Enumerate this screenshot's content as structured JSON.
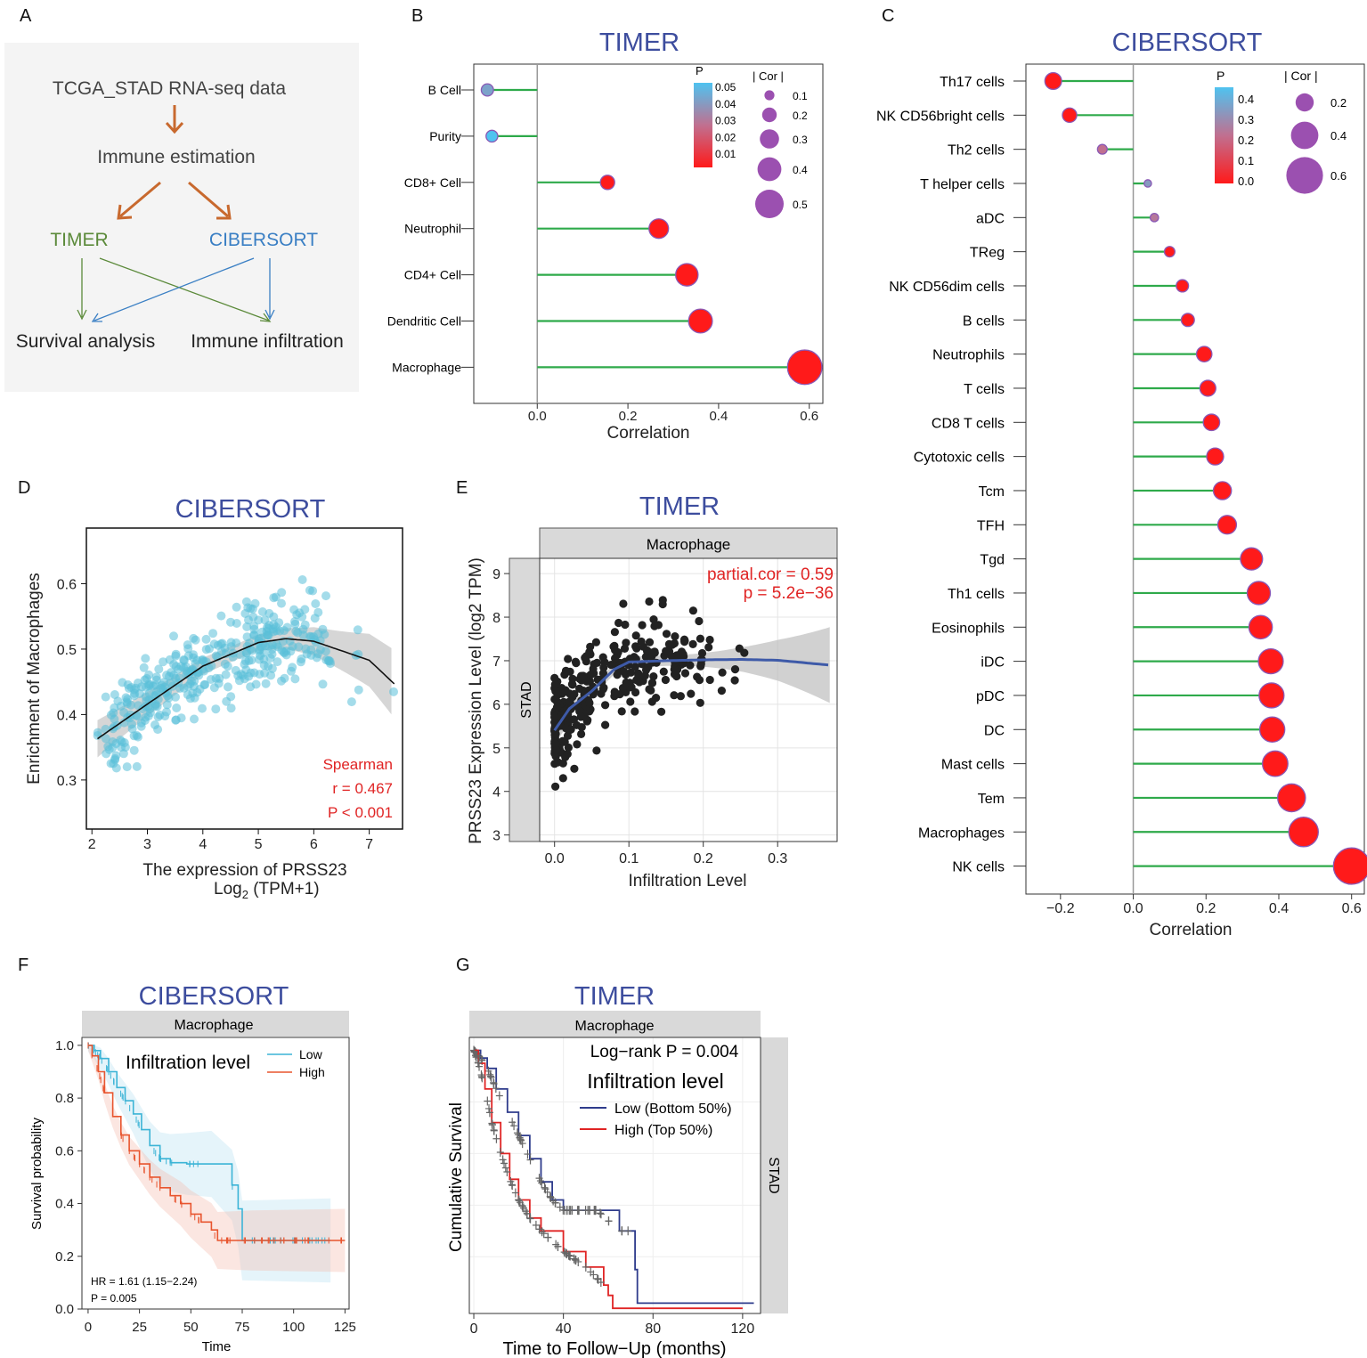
{
  "panels": {
    "A": {
      "label": "A",
      "top": "TCGA_STAD RNA-seq data",
      "mid": "Immune estimation",
      "left": "TIMER",
      "right": "CIBERSORT",
      "out_left": "Survival analysis",
      "out_right": "Immune infiltration",
      "colors": {
        "bg": "#f4f4f4",
        "arrow": "#c8692e",
        "timer": "#5b8a3a",
        "cibersort": "#3a7fc4"
      }
    },
    "B": {
      "label": "B"
    },
    "C": {
      "label": "C"
    },
    "D": {
      "label": "D"
    },
    "E": {
      "label": "E"
    },
    "F": {
      "label": "F"
    },
    "G": {
      "label": "G"
    }
  },
  "chart_data": [
    {
      "id": "B",
      "type": "lollipop",
      "title": "TIMER",
      "xlabel": "Correlation",
      "xlim": [
        -0.14,
        0.63
      ],
      "xticks": [
        "0.0",
        "0.2",
        "0.4",
        "0.6"
      ],
      "xtick_values": [
        0.0,
        0.2,
        0.4,
        0.6
      ],
      "categories": [
        "B Cell",
        "Purity",
        "CD8+ Cell",
        "Neutrophil",
        "CD4+ Cell",
        "Dendritic Cell",
        "Macrophage"
      ],
      "values": [
        -0.11,
        -0.1,
        0.155,
        0.268,
        0.33,
        0.36,
        0.59
      ],
      "p_values": [
        0.04,
        0.05,
        0.0,
        0.0,
        0.0,
        0.0,
        0.0
      ],
      "legend_p_title": "P",
      "legend_p_ticks": [
        "0.05",
        "0.04",
        "0.03",
        "0.02",
        "0.01"
      ],
      "legend_cor_title": "| Cor |",
      "legend_cor_values": [
        "0.1",
        "0.2",
        "0.3",
        "0.4",
        "0.5"
      ]
    },
    {
      "id": "C",
      "type": "lollipop",
      "title": "CIBERSORT",
      "xlabel": "Correlation",
      "xlim": [
        -0.295,
        0.635
      ],
      "xticks": [
        "−0.2",
        "0.0",
        "0.2",
        "0.4",
        "0.6"
      ],
      "xtick_values": [
        -0.2,
        0.0,
        0.2,
        0.4,
        0.6
      ],
      "categories": [
        "Th17 cells",
        "NK CD56bright cells",
        "Th2 cells",
        "T helper cells",
        "aDC",
        "TReg",
        "NK CD56dim cells",
        "B cells",
        "Neutrophils",
        "T cells",
        "CD8 T cells",
        "Cytotoxic cells",
        "Tcm",
        "TFH",
        "Tgd",
        "Th1 cells",
        "Eosinophils",
        "iDC",
        "pDC",
        "DC",
        "Mast cells",
        "Tem",
        "Macrophages",
        "NK cells"
      ],
      "values": [
        -0.22,
        -0.175,
        -0.085,
        0.04,
        0.058,
        0.1,
        0.135,
        0.15,
        0.195,
        0.205,
        0.215,
        0.225,
        0.245,
        0.258,
        0.325,
        0.345,
        0.35,
        0.378,
        0.38,
        0.382,
        0.39,
        0.435,
        0.468,
        0.6
      ],
      "p_values": [
        0.0,
        0.0,
        0.2,
        0.3,
        0.22,
        0.0,
        0.0,
        0.0,
        0.0,
        0.0,
        0.0,
        0.0,
        0.0,
        0.0,
        0.0,
        0.0,
        0.0,
        0.0,
        0.0,
        0.0,
        0.0,
        0.0,
        0.0,
        0.0
      ],
      "legend_p_title": "P",
      "legend_p_ticks": [
        "0.4",
        "0.3",
        "0.2",
        "0.1",
        "0.0"
      ],
      "legend_cor_title": "| Cor |",
      "legend_cor_values": [
        "0.2",
        "0.4",
        "0.6"
      ]
    },
    {
      "id": "D",
      "type": "scatter",
      "title": "CIBERSORT",
      "xlabel": "The expression of PRSS23",
      "xlabel2": "Log",
      "xlabel2_sub": "2",
      "xlabel2_rest": " (TPM+1)",
      "ylabel": "Enrichment of Macrophages",
      "xlim": [
        1.9,
        7.6
      ],
      "ylim": [
        0.225,
        0.685
      ],
      "xticks": [
        2,
        3,
        4,
        5,
        6,
        7
      ],
      "yticks": [
        0.3,
        0.4,
        0.5,
        0.6
      ],
      "n_points": 380,
      "fit_x": [
        2.1,
        3.0,
        4.0,
        5.0,
        5.5,
        6.0,
        7.0,
        7.45
      ],
      "fit_y": [
        0.363,
        0.416,
        0.474,
        0.51,
        0.516,
        0.512,
        0.483,
        0.447
      ],
      "annot": [
        "Spearman",
        "r = 0.467",
        "P < 0.001"
      ],
      "colors": {
        "point": "#59bfd9",
        "annot": "#e02424"
      }
    },
    {
      "id": "E",
      "type": "scatter",
      "title": "TIMER",
      "strip_top": "Macrophage",
      "strip_left": "STAD",
      "xlabel": "Infiltration Level",
      "ylabel": "PRSS23 Expression Level (log2 TPM)",
      "xlim": [
        -0.02,
        0.38
      ],
      "ylim": [
        2.85,
        9.35
      ],
      "xticks": [
        "0.0",
        "0.1",
        "0.2",
        "0.3"
      ],
      "xtick_values": [
        0.0,
        0.1,
        0.2,
        0.3
      ],
      "yticks": [
        3,
        4,
        5,
        6,
        7,
        8,
        9
      ],
      "n_points": 330,
      "fit_x": [
        0.0,
        0.02,
        0.05,
        0.08,
        0.1,
        0.15,
        0.2,
        0.25,
        0.3,
        0.37
      ],
      "fit_y": [
        5.4,
        5.9,
        6.3,
        6.8,
        6.97,
        7.0,
        7.02,
        7.03,
        7.01,
        6.9
      ],
      "annot": [
        "partial.cor = 0.59",
        "p = 5.2e−36"
      ],
      "colors": {
        "point": "#222222",
        "fit": "#3e5aa8",
        "annot": "#e02424"
      }
    },
    {
      "id": "F",
      "type": "km",
      "title": "CIBERSORT",
      "strip_top": "Macrophage",
      "xlabel": "Time",
      "ylabel": "Survival probability",
      "xlim": [
        -3,
        127
      ],
      "ylim": [
        0,
        1.03
      ],
      "xticks": [
        0,
        25,
        50,
        75,
        100,
        125
      ],
      "yticks": [
        "0.0",
        "0.2",
        "0.4",
        "0.6",
        "0.8",
        "1.0"
      ],
      "ytick_values": [
        0.0,
        0.2,
        0.4,
        0.6,
        0.8,
        1.0
      ],
      "legend_title": "Infiltration level",
      "series": [
        {
          "name": "Low",
          "color": "#3cb4d6",
          "x": [
            0,
            3,
            6,
            10,
            14,
            18,
            22,
            26,
            30,
            35,
            40,
            48,
            60,
            70,
            73,
            75,
            118
          ],
          "y": [
            1.0,
            0.98,
            0.95,
            0.9,
            0.84,
            0.79,
            0.74,
            0.68,
            0.62,
            0.57,
            0.555,
            0.55,
            0.55,
            0.47,
            0.38,
            0.26,
            0.26
          ]
        },
        {
          "name": "High",
          "color": "#e8552f",
          "x": [
            0,
            2,
            5,
            8,
            12,
            16,
            20,
            25,
            30,
            35,
            40,
            45,
            50,
            55,
            60,
            63,
            80,
            125
          ],
          "y": [
            1.0,
            0.96,
            0.9,
            0.82,
            0.73,
            0.66,
            0.6,
            0.55,
            0.5,
            0.46,
            0.43,
            0.4,
            0.36,
            0.33,
            0.3,
            0.26,
            0.26,
            0.26
          ]
        }
      ],
      "annot": [
        "HR = 1.61 (1.15−2.24)",
        "P = 0.005"
      ]
    },
    {
      "id": "G",
      "type": "km",
      "title": "TIMER",
      "strip_top": "Macrophage",
      "strip_right": "STAD",
      "xlabel": "Time to Follow−Up (months)",
      "ylabel": "Cumulative Survival",
      "xlim": [
        -2,
        128
      ],
      "ylim": [
        -0.02,
        1.05
      ],
      "xticks": [
        0,
        40,
        80,
        120
      ],
      "pvalue": "Log−rank P = 0.004",
      "legend_title": "Infiltration level",
      "series": [
        {
          "name": "Low (Bottom 50%)",
          "color": "#2f3c8c",
          "x": [
            0,
            3,
            6,
            10,
            15,
            20,
            25,
            30,
            35,
            40,
            55,
            65,
            70,
            72,
            73,
            125
          ],
          "y": [
            1.0,
            0.97,
            0.93,
            0.85,
            0.76,
            0.67,
            0.58,
            0.49,
            0.42,
            0.38,
            0.38,
            0.3,
            0.3,
            0.15,
            0.02,
            0.02
          ]
        },
        {
          "name": "High (Top 50%)",
          "color": "#e02424",
          "x": [
            0,
            2,
            5,
            8,
            12,
            16,
            20,
            25,
            30,
            40,
            50,
            58,
            60,
            62,
            120
          ],
          "y": [
            1.0,
            0.95,
            0.85,
            0.72,
            0.6,
            0.5,
            0.42,
            0.35,
            0.3,
            0.22,
            0.16,
            0.09,
            0.05,
            0.0,
            0.0
          ]
        }
      ]
    }
  ]
}
